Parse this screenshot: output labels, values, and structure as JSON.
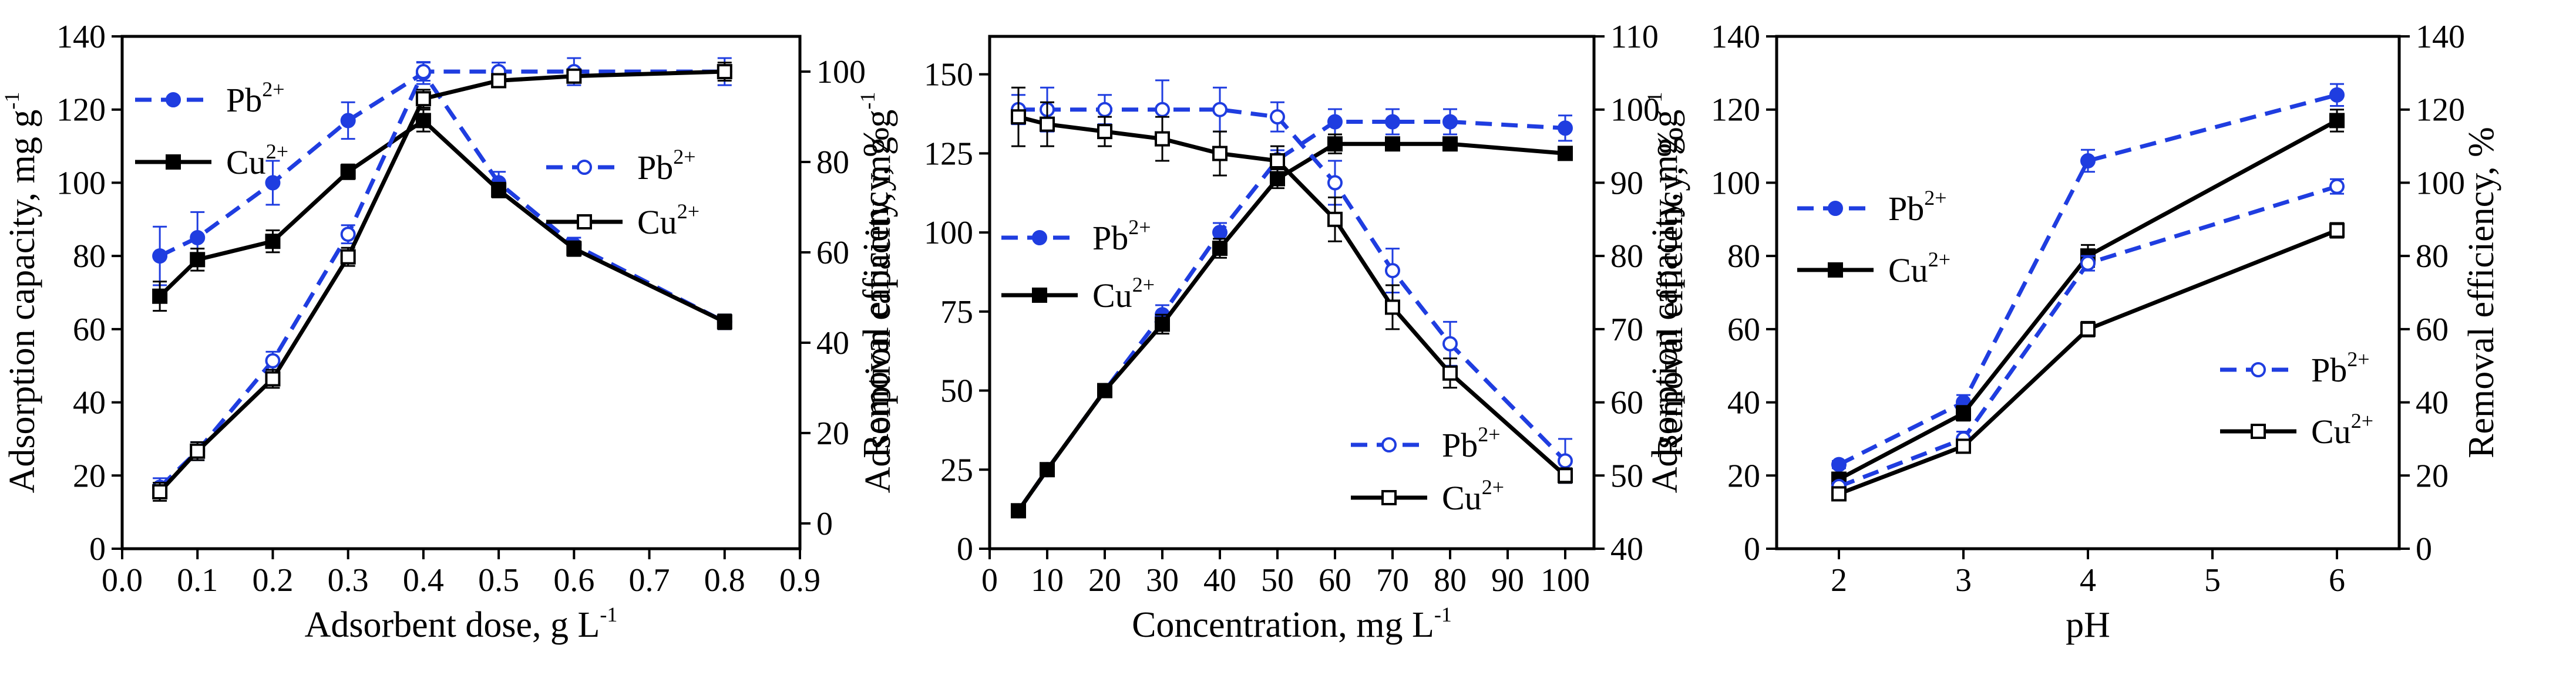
{
  "figure": {
    "colors": {
      "pb": "#1f3de0",
      "cu": "#000000"
    }
  },
  "chart_data": [
    {
      "type": "line",
      "panel": "a",
      "xlabel": "Adsorbent dose, g L",
      "xlabel_sup": "-1",
      "ylabel": "Adsorption capacity, mg g",
      "ylabel_sup": "-1",
      "y2label": "Removal efficiency, %",
      "xlim": [
        0.0,
        0.9
      ],
      "ylim": [
        0,
        140
      ],
      "y2lim": [
        -5.6,
        107.8
      ],
      "xticks": [
        0.0,
        0.1,
        0.2,
        0.3,
        0.4,
        0.5,
        0.6,
        0.7,
        0.8,
        0.9
      ],
      "xtick_labels": [
        "0.0",
        "0.1",
        "0.2",
        "0.3",
        "0.4",
        "0.5",
        "0.6",
        "0.7",
        "0.8",
        "0.9"
      ],
      "yticks": [
        0,
        20,
        40,
        60,
        80,
        100,
        120,
        140
      ],
      "ytick_labels": [
        "0",
        "20",
        "40",
        "60",
        "80",
        "100",
        "120",
        "140"
      ],
      "y2ticks": [
        0,
        20,
        40,
        60,
        80,
        100
      ],
      "y2tick_labels": [
        "0",
        "20",
        "40",
        "60",
        "80",
        "100"
      ],
      "series": [
        {
          "name": "Pb",
          "ion_charge": "2+",
          "axis": "left",
          "style": "dashed",
          "marker": "filled-circle",
          "color": "#1f3de0",
          "x": [
            0.05,
            0.1,
            0.2,
            0.3,
            0.4,
            0.5,
            0.6,
            0.8
          ],
          "y": [
            80,
            85,
            100,
            117,
            130,
            100,
            83,
            62
          ],
          "err": [
            8,
            7,
            6,
            5,
            3,
            3,
            2,
            2
          ]
        },
        {
          "name": "Cu",
          "ion_charge": "2+",
          "axis": "left",
          "style": "solid",
          "marker": "filled-square",
          "color": "#000000",
          "x": [
            0.05,
            0.1,
            0.2,
            0.3,
            0.4,
            0.5,
            0.6,
            0.8
          ],
          "y": [
            69,
            79,
            84,
            103,
            117,
            98,
            82,
            62
          ],
          "err": [
            4,
            3,
            3,
            2,
            3,
            2,
            2,
            2
          ]
        },
        {
          "name": "Pb",
          "ion_charge": "2+",
          "axis": "right",
          "style": "dashed",
          "marker": "open-circle",
          "color": "#1f3de0",
          "x": [
            0.05,
            0.1,
            0.2,
            0.3,
            0.4,
            0.5,
            0.6,
            0.8
          ],
          "y": [
            8,
            16,
            36,
            64,
            100,
            100,
            100,
            100
          ],
          "err": [
            2,
            2,
            2,
            2,
            2,
            2,
            3,
            3
          ]
        },
        {
          "name": "Cu",
          "ion_charge": "2+",
          "axis": "right",
          "style": "solid",
          "marker": "open-square",
          "color": "#000000",
          "x": [
            0.05,
            0.1,
            0.2,
            0.3,
            0.4,
            0.5,
            0.6,
            0.8
          ],
          "y": [
            7,
            16,
            32,
            59,
            94,
            98,
            99,
            100
          ],
          "err": [
            2,
            2,
            2,
            2,
            2,
            1,
            1,
            2
          ]
        }
      ]
    },
    {
      "type": "line",
      "panel": "b",
      "xlabel": "Concentration, mg L",
      "xlabel_sup": "-1",
      "ylabel": "Adsorption capacity, mg g",
      "ylabel_sup": "-1",
      "y2label": "Removal efficiency, %",
      "xlim": [
        0,
        105
      ],
      "ylim": [
        0,
        162
      ],
      "y2lim": [
        40,
        110
      ],
      "xticks": [
        0,
        10,
        20,
        30,
        40,
        50,
        60,
        70,
        80,
        90,
        100
      ],
      "xtick_labels": [
        "0",
        "10",
        "20",
        "30",
        "40",
        "50",
        "60",
        "70",
        "80",
        "90",
        "100"
      ],
      "yticks": [
        0,
        25,
        50,
        75,
        100,
        125,
        150
      ],
      "ytick_labels": [
        "0",
        "25",
        "50",
        "75",
        "100",
        "125",
        "150"
      ],
      "y2ticks": [
        40,
        50,
        60,
        70,
        80,
        90,
        100,
        110
      ],
      "y2tick_labels": [
        "40",
        "50",
        "60",
        "70",
        "80",
        "90",
        "100",
        "110"
      ],
      "series": [
        {
          "name": "Pb",
          "ion_charge": "2+",
          "axis": "left",
          "style": "dashed",
          "marker": "filled-circle",
          "color": "#1f3de0",
          "x": [
            5,
            10,
            20,
            30,
            40,
            50,
            60,
            70,
            80,
            100
          ],
          "y": [
            12,
            25,
            50,
            74,
            100,
            123,
            135,
            135,
            135,
            133
          ],
          "err": [
            2,
            2,
            2,
            3,
            3,
            3,
            4,
            4,
            4,
            4
          ]
        },
        {
          "name": "Cu",
          "ion_charge": "2+",
          "axis": "left",
          "style": "solid",
          "marker": "filled-square",
          "color": "#000000",
          "x": [
            5,
            10,
            20,
            30,
            40,
            50,
            60,
            70,
            80,
            100
          ],
          "y": [
            12,
            25,
            50,
            71,
            95,
            117,
            128,
            128,
            128,
            125
          ],
          "err": [
            2,
            2,
            2,
            3,
            3,
            3,
            3,
            2,
            2,
            2
          ]
        },
        {
          "name": "Pb",
          "ion_charge": "2+",
          "axis": "right",
          "style": "dashed",
          "marker": "open-circle",
          "color": "#1f3de0",
          "x": [
            5,
            10,
            20,
            30,
            40,
            50,
            60,
            70,
            80,
            100
          ],
          "y": [
            100,
            100,
            100,
            100,
            100,
            99,
            90,
            78,
            68,
            52
          ],
          "err": [
            2,
            3,
            2,
            4,
            3,
            2,
            3,
            3,
            3,
            3
          ]
        },
        {
          "name": "Cu",
          "ion_charge": "2+",
          "axis": "right",
          "style": "solid",
          "marker": "open-square",
          "color": "#000000",
          "x": [
            5,
            10,
            20,
            30,
            40,
            50,
            60,
            70,
            80,
            100
          ],
          "y": [
            99,
            98,
            97,
            96,
            94,
            93,
            85,
            73,
            64,
            50
          ],
          "err": [
            4,
            3,
            2,
            3,
            3,
            2,
            3,
            3,
            2,
            1
          ]
        }
      ]
    },
    {
      "type": "line",
      "panel": "c",
      "xlabel": "pH",
      "ylabel": "Adsorption capacity, mg g",
      "ylabel_sup": "-1",
      "y2label": "Removal efficiency, %",
      "xlim": [
        1.5,
        6.5
      ],
      "ylim": [
        0,
        140
      ],
      "y2lim": [
        0,
        140
      ],
      "xticks": [
        2,
        3,
        4,
        5,
        6
      ],
      "xtick_labels": [
        "2",
        "3",
        "4",
        "5",
        "6"
      ],
      "yticks": [
        0,
        20,
        40,
        60,
        80,
        100,
        120,
        140
      ],
      "ytick_labels": [
        "0",
        "20",
        "40",
        "60",
        "80",
        "100",
        "120",
        "140"
      ],
      "y2ticks": [
        0,
        20,
        40,
        60,
        80,
        100,
        120,
        140
      ],
      "y2tick_labels": [
        "0",
        "20",
        "40",
        "60",
        "80",
        "100",
        "120",
        "140"
      ],
      "series": [
        {
          "name": "Pb",
          "ion_charge": "2+",
          "axis": "left",
          "style": "dashed",
          "marker": "filled-circle",
          "color": "#1f3de0",
          "x": [
            2,
            3,
            4,
            6
          ],
          "y": [
            23,
            40,
            106,
            124
          ],
          "err": [
            1,
            2,
            3,
            3
          ]
        },
        {
          "name": "Cu",
          "ion_charge": "2+",
          "axis": "left",
          "style": "solid",
          "marker": "filled-square",
          "color": "#000000",
          "x": [
            2,
            3,
            4,
            6
          ],
          "y": [
            19,
            37,
            80,
            117
          ],
          "err": [
            1,
            2,
            3,
            3
          ]
        },
        {
          "name": "Pb",
          "ion_charge": "2+",
          "axis": "right",
          "style": "dashed",
          "marker": "open-circle",
          "color": "#1f3de0",
          "x": [
            2,
            3,
            4,
            6
          ],
          "y": [
            17,
            30,
            78,
            99
          ],
          "err": [
            1,
            2,
            2,
            2
          ]
        },
        {
          "name": "Cu",
          "ion_charge": "2+",
          "axis": "right",
          "style": "solid",
          "marker": "open-square",
          "color": "#000000",
          "x": [
            2,
            3,
            4,
            6
          ],
          "y": [
            15,
            28,
            60,
            87
          ],
          "err": [
            1,
            1,
            2,
            2
          ]
        }
      ]
    }
  ]
}
